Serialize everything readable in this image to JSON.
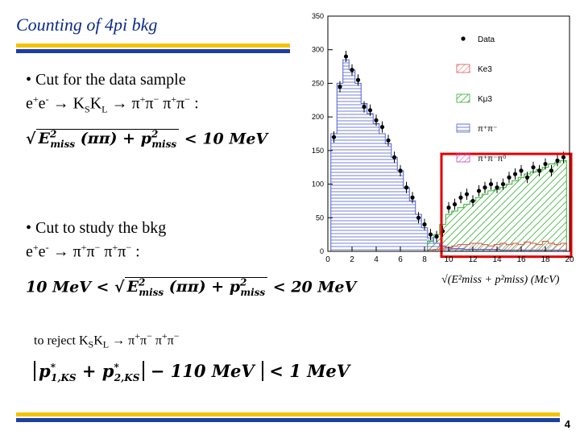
{
  "slide": {
    "title": "Counting of 4pi bkg",
    "bullet1_line1": "• Cut for the data sample",
    "bullet1_line2": "e+e- → KSKL → π+π− π+π− :",
    "formula1": "√(E²miss(ππ) + p²miss) < 10 MeV",
    "bullet2_line1": "• Cut  to study the bkg",
    "bullet2_line2": "e+e- → π+π− π+π− :",
    "formula2": "10 MeV < √(E²miss(ππ) + p²miss) < 20 MeV",
    "reject_line": "to reject KSKL → π+π−  π+π−",
    "formula3": "|p*1,KS + p*2,KS| − 110 MeV| < 1 MeV",
    "page_number": "4"
  },
  "chart_data": {
    "type": "bar",
    "xlabel": "√(E²miss + p²miss)  (McV)",
    "xlim": [
      0,
      20
    ],
    "ylim": [
      0,
      350
    ],
    "x_ticks": [
      "0",
      "2",
      "4",
      "6",
      "8",
      "10",
      "12",
      "14",
      "16",
      "18",
      "20"
    ],
    "y_ticks": [
      "0",
      "50",
      "100",
      "150",
      "200",
      "250",
      "300",
      "350"
    ],
    "legend": [
      "Data",
      "Ke3",
      "Kμ3",
      "π⁺π⁻",
      "π⁺π⁻π⁰"
    ],
    "x": [
      0.5,
      1.0,
      1.5,
      2.0,
      2.5,
      3.0,
      3.5,
      4.0,
      4.5,
      5.0,
      5.5,
      6.0,
      6.5,
      7.0,
      7.5,
      8.0,
      8.5,
      9.0,
      9.5,
      10.0,
      10.5,
      11.0,
      11.5,
      12.0,
      12.5,
      13.0,
      13.5,
      14.0,
      14.5,
      15.0,
      15.5,
      16.0,
      16.5,
      17.0,
      17.5,
      18.0,
      18.5,
      19.0,
      19.5
    ],
    "data": [
      170,
      245,
      290,
      270,
      255,
      215,
      210,
      195,
      185,
      165,
      140,
      120,
      95,
      80,
      50,
      40,
      25,
      22,
      30,
      65,
      70,
      80,
      85,
      75,
      90,
      95,
      100,
      95,
      100,
      110,
      115,
      120,
      110,
      125,
      120,
      130,
      120,
      135,
      140
    ],
    "pipi_mc": [
      175,
      250,
      285,
      270,
      250,
      220,
      205,
      190,
      175,
      160,
      140,
      120,
      95,
      75,
      55,
      35,
      20,
      12,
      8,
      5,
      4,
      4,
      3,
      3,
      3,
      3,
      3,
      3,
      2,
      2,
      2,
      2,
      2,
      2,
      2,
      2,
      2,
      2,
      2
    ],
    "kmu3_mc": [
      0,
      0,
      0,
      0,
      0,
      0,
      0,
      0,
      0,
      0,
      0,
      0,
      0,
      0,
      0,
      0,
      15,
      25,
      40,
      55,
      60,
      65,
      70,
      75,
      80,
      85,
      90,
      92,
      95,
      100,
      105,
      110,
      115,
      118,
      122,
      125,
      130,
      132,
      135
    ],
    "ke3_mc": [
      0,
      0,
      0,
      0,
      0,
      0,
      0,
      0,
      0,
      0,
      0,
      0,
      0,
      0,
      0,
      0,
      2,
      3,
      5,
      6,
      8,
      10,
      10,
      12,
      12,
      10,
      8,
      10,
      12,
      10,
      12,
      10,
      14,
      12,
      10,
      15,
      12,
      10,
      12
    ],
    "colors": {
      "data": "#000000",
      "ke3": "#e05050",
      "kmu3": "#30b030",
      "pipi": "#5060d0",
      "pipipi0": "#c040c0",
      "box": "#e00000"
    }
  }
}
